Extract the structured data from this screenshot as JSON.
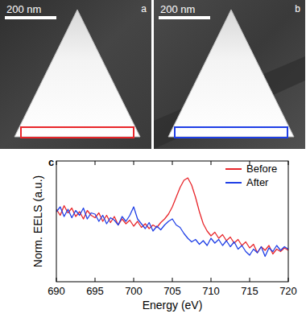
{
  "images": [
    {
      "label": "a",
      "scale_bar": "200 nm",
      "box_color": "#e8262b"
    },
    {
      "label": "b",
      "scale_bar": "200 nm",
      "box_color": "#1f3fe6"
    }
  ],
  "chart_data": {
    "type": "line",
    "panel_label": "c",
    "x_label": "Energy (eV)",
    "y_label": "Norm. EELS (a.u.)",
    "x": [
      690,
      690.5,
      691,
      691.5,
      692,
      692.5,
      693,
      693.5,
      694,
      694.5,
      695,
      695.5,
      696,
      696.5,
      697,
      697.5,
      698,
      698.5,
      699,
      699.5,
      700,
      700.5,
      701,
      701.5,
      702,
      702.5,
      703,
      703.5,
      704,
      704.5,
      705,
      705.5,
      706,
      706.5,
      707,
      707.5,
      708,
      708.5,
      709,
      709.5,
      710,
      710.5,
      711,
      711.5,
      712,
      712.5,
      713,
      713.5,
      714,
      714.5,
      715,
      715.5,
      716,
      716.5,
      717,
      717.5,
      718,
      718.5,
      719,
      719.5,
      720
    ],
    "series": [
      {
        "name": "Before",
        "color": "#e8262b",
        "values": [
          0.6,
          0.55,
          0.63,
          0.57,
          0.61,
          0.54,
          0.58,
          0.52,
          0.59,
          0.55,
          0.53,
          0.57,
          0.5,
          0.55,
          0.49,
          0.54,
          0.47,
          0.52,
          0.48,
          0.51,
          0.46,
          0.5,
          0.45,
          0.48,
          0.44,
          0.47,
          0.45,
          0.49,
          0.52,
          0.56,
          0.62,
          0.7,
          0.78,
          0.84,
          0.86,
          0.8,
          0.7,
          0.58,
          0.48,
          0.42,
          0.38,
          0.41,
          0.36,
          0.39,
          0.34,
          0.37,
          0.32,
          0.35,
          0.3,
          0.33,
          0.28,
          0.31,
          0.24,
          0.29,
          0.26,
          0.3,
          0.23,
          0.27,
          0.25,
          0.28,
          0.26
        ]
      },
      {
        "name": "After",
        "color": "#1f3fe6",
        "values": [
          0.58,
          0.62,
          0.54,
          0.6,
          0.53,
          0.59,
          0.55,
          0.61,
          0.52,
          0.57,
          0.56,
          0.5,
          0.55,
          0.48,
          0.53,
          0.51,
          0.47,
          0.54,
          0.5,
          0.55,
          0.62,
          0.52,
          0.48,
          0.44,
          0.49,
          0.42,
          0.46,
          0.43,
          0.47,
          0.5,
          0.52,
          0.47,
          0.45,
          0.4,
          0.36,
          0.33,
          0.35,
          0.31,
          0.34,
          0.3,
          0.36,
          0.32,
          0.35,
          0.3,
          0.34,
          0.29,
          0.33,
          0.27,
          0.3,
          0.25,
          0.22,
          0.27,
          0.24,
          0.29,
          0.21,
          0.28,
          0.25,
          0.3,
          0.26,
          0.29,
          0.27
        ]
      }
    ],
    "xlim": [
      690,
      720
    ],
    "xticks": [
      690,
      695,
      700,
      705,
      710,
      715,
      720
    ],
    "ylim": [
      0,
      1
    ],
    "tick_labels": "x",
    "legend": "upper right",
    "grid": false
  }
}
